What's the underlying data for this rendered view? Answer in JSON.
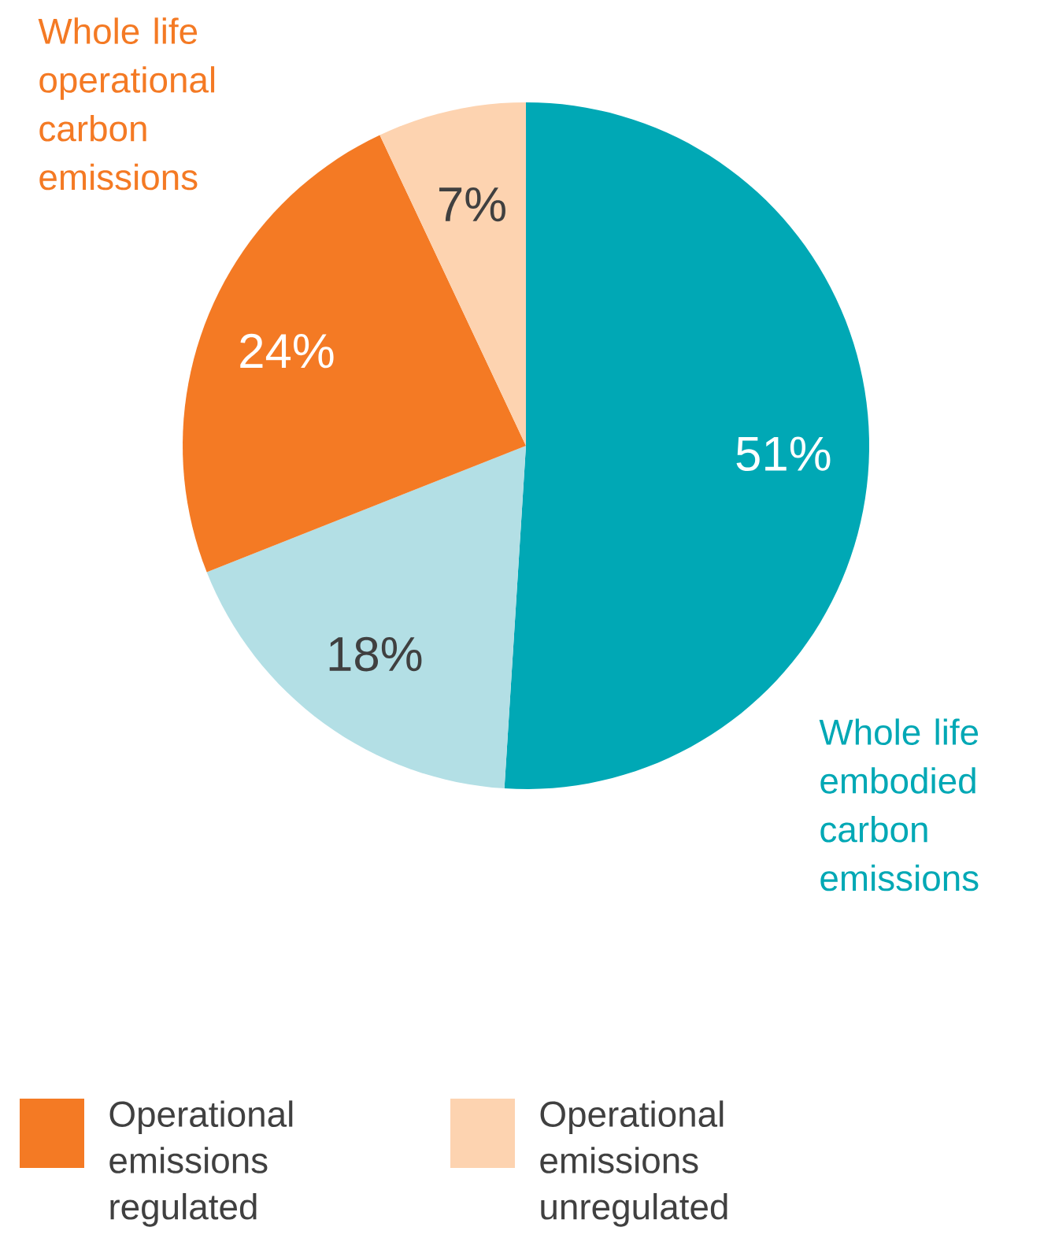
{
  "chart_data": {
    "type": "pie",
    "categories": [
      null,
      null,
      "Operational emissions regulated",
      "Operational emissions unregulated"
    ],
    "values": [
      51,
      18,
      24,
      7
    ],
    "colors": [
      "#00a8b5",
      "#b3dfe5",
      "#f47a24",
      "#fdd3b0"
    ],
    "value_labels": [
      "51%",
      "18%",
      "24%",
      "7%"
    ],
    "legend": "bottom left",
    "annotations": [
      "Whole life operational carbon emissions",
      "Whole life embodied carbon emissions"
    ]
  }
}
